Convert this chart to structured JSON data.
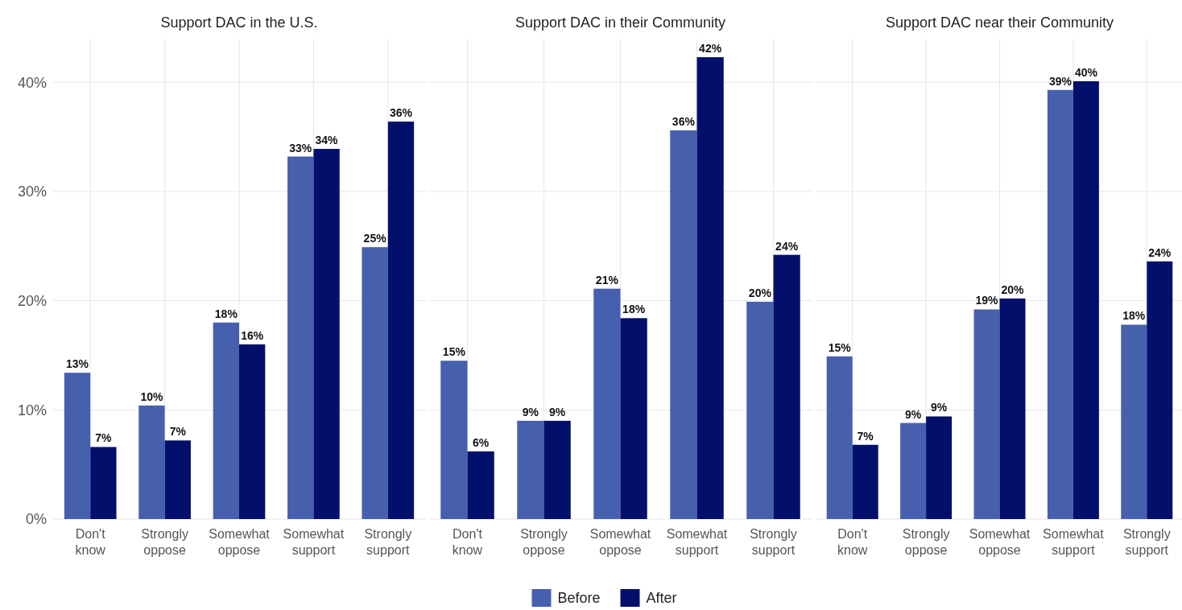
{
  "chart_data": [
    {
      "type": "bar",
      "title": "Support DAC in the U.S.",
      "categories": [
        "Don't know",
        "Strongly oppose",
        "Somewhat oppose",
        "Somewhat support",
        "Strongly support"
      ],
      "ylim": [
        0,
        44
      ],
      "yticks": [
        {
          "value": 0,
          "label": "0%"
        },
        {
          "value": 10,
          "label": "10%"
        },
        {
          "value": 20,
          "label": "20%"
        },
        {
          "value": 30,
          "label": "30%"
        },
        {
          "value": 40,
          "label": "40%"
        }
      ],
      "grid": true,
      "series": [
        {
          "color": "#4660ae",
          "values": [
            13.4,
            10.4,
            18.0,
            33.2,
            24.9
          ],
          "value_labels": [
            "13%",
            "10%",
            "18%",
            "33%",
            "25%"
          ]
        },
        {
          "color": "#03106b",
          "values": [
            6.6,
            7.2,
            16.0,
            33.9,
            36.4
          ],
          "value_labels": [
            "7%",
            "7%",
            "16%",
            "34%",
            "36%"
          ]
        }
      ]
    },
    {
      "type": "bar",
      "title": "Support DAC in their Community",
      "categories": [
        "Don't know",
        "Strongly oppose",
        "Somewhat oppose",
        "Somewhat support",
        "Strongly support"
      ],
      "ylim": [
        0,
        44
      ],
      "yticks": [
        {
          "value": 0,
          "label": null
        },
        {
          "value": 10,
          "label": null
        },
        {
          "value": 20,
          "label": null
        },
        {
          "value": 30,
          "label": null
        },
        {
          "value": 40,
          "label": null
        }
      ],
      "grid": true,
      "tick_labels": "x",
      "legend": "bottom",
      "series": [
        {
          "name": "Before",
          "color": "#4660ae",
          "values": [
            14.5,
            9.0,
            21.1,
            35.6,
            19.9
          ],
          "value_labels": [
            "15%",
            "9%",
            "21%",
            "36%",
            "20%"
          ]
        },
        {
          "name": "After",
          "color": "#03106b",
          "values": [
            6.2,
            9.0,
            18.4,
            42.3,
            24.2
          ],
          "value_labels": [
            "6%",
            "9%",
            "18%",
            "42%",
            "24%"
          ]
        }
      ]
    },
    {
      "type": "bar",
      "title": "Support DAC near their Community",
      "categories": [
        "Don't know",
        "Strongly oppose",
        "Somewhat oppose",
        "Somewhat support",
        "Strongly support"
      ],
      "ylim": [
        0,
        44
      ],
      "yticks": [
        {
          "value": 0,
          "label": null
        },
        {
          "value": 10,
          "label": null
        },
        {
          "value": 20,
          "label": null
        },
        {
          "value": 30,
          "label": null
        },
        {
          "value": 40,
          "label": null
        }
      ],
      "grid": true,
      "tick_labels": "x",
      "series": [
        {
          "color": "#4660ae",
          "values": [
            14.9,
            8.8,
            19.2,
            39.3,
            17.8
          ],
          "value_labels": [
            "15%",
            "9%",
            "19%",
            "39%",
            "18%"
          ]
        },
        {
          "color": "#03106b",
          "values": [
            6.8,
            9.4,
            20.2,
            40.1,
            23.6
          ],
          "value_labels": [
            "7%",
            "9%",
            "20%",
            "40%",
            "24%"
          ]
        }
      ]
    }
  ]
}
